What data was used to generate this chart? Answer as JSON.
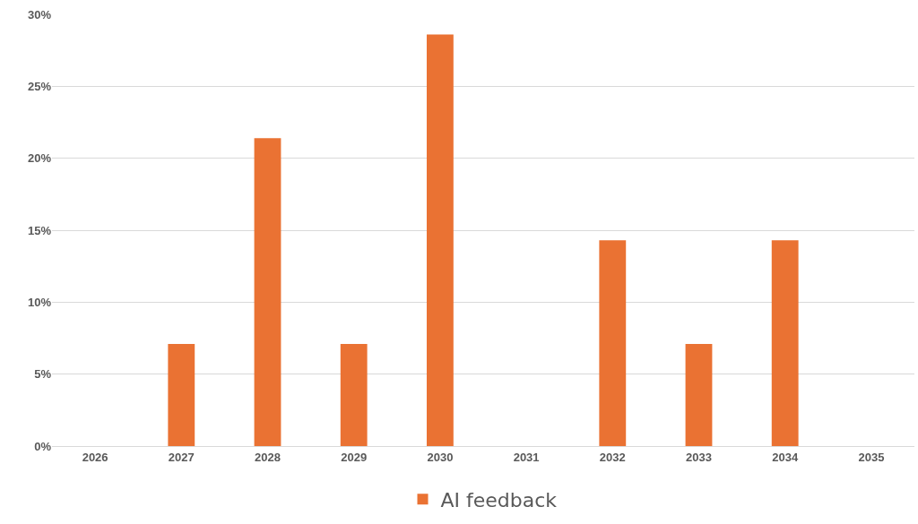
{
  "chart_data": {
    "type": "bar",
    "categories": [
      "2026",
      "2027",
      "2028",
      "2029",
      "2030",
      "2031",
      "2032",
      "2033",
      "2034",
      "2035"
    ],
    "series": [
      {
        "name": "AI feedback",
        "color": "#ea7233",
        "values": [
          0,
          7.1,
          21.4,
          7.1,
          28.6,
          0,
          14.3,
          7.1,
          14.3,
          0
        ]
      }
    ],
    "ylim": [
      0,
      30
    ],
    "yticks": [
      {
        "value": 0,
        "label": "0%"
      },
      {
        "value": 5,
        "label": "5%"
      },
      {
        "value": 10,
        "label": "10%"
      },
      {
        "value": 15,
        "label": "15%"
      },
      {
        "value": 20,
        "label": "20%"
      },
      {
        "value": 25,
        "label": "25%"
      },
      {
        "value": 30,
        "label": "30%"
      }
    ],
    "grid": "y",
    "legend": "bottom"
  }
}
